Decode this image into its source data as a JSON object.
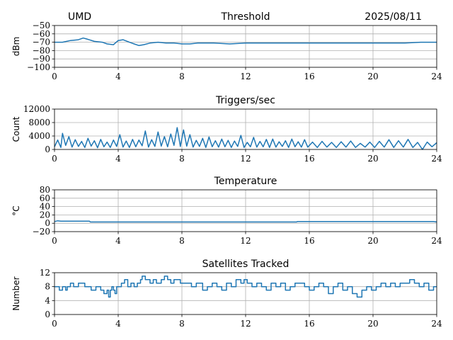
{
  "header": {
    "station": "UMD",
    "date": "2025/08/11"
  },
  "style": {
    "line_color": "#1f77b4",
    "grid_color": "#b0b0b0"
  },
  "chart_data": [
    {
      "type": "line",
      "title": "Threshold",
      "ylabel": "dBm",
      "xlim": [
        0,
        24
      ],
      "xticks": [
        0,
        4,
        8,
        12,
        16,
        20,
        24
      ],
      "ylim": [
        -100,
        -50
      ],
      "yticks": [
        -100,
        -90,
        -80,
        -70,
        -60,
        -50
      ],
      "ytick_labels": [
        "−100",
        "−90",
        "−80",
        "−70",
        "−60",
        "−50"
      ],
      "grid": true,
      "series": [
        {
          "x": [
            0,
            0.5,
            1,
            1.5,
            1.8,
            2,
            2.5,
            3,
            3.3,
            3.7,
            4,
            4.3,
            4.7,
            5,
            5.3,
            5.6,
            6,
            6.5,
            7,
            7.5,
            8,
            8.5,
            9,
            10,
            11,
            12,
            13,
            14,
            15,
            16,
            17,
            18,
            19,
            20,
            21,
            22,
            23,
            24
          ],
          "y": [
            -70,
            -70,
            -68,
            -67,
            -65,
            -66,
            -69,
            -70,
            -72,
            -73,
            -68,
            -67,
            -70,
            -72,
            -74,
            -73,
            -71,
            -70,
            -71,
            -71,
            -72,
            -72,
            -71,
            -71,
            -72,
            -71,
            -71,
            -71,
            -71,
            -71,
            -71,
            -71,
            -71,
            -71,
            -71,
            -71,
            -70,
            -70
          ]
        }
      ]
    },
    {
      "type": "line",
      "title": "Triggers/sec",
      "ylabel": "Count",
      "xlim": [
        0,
        24
      ],
      "xticks": [
        0,
        4,
        8,
        12,
        16,
        20,
        24
      ],
      "ylim": [
        0,
        12000
      ],
      "yticks": [
        0,
        4000,
        8000,
        12000
      ],
      "ytick_labels": [
        "0",
        "4000",
        "8000",
        "12000"
      ],
      "grid": true,
      "series": [
        {
          "x": [
            0,
            0.2,
            0.4,
            0.5,
            0.7,
            0.9,
            1.1,
            1.3,
            1.5,
            1.7,
            1.9,
            2.1,
            2.3,
            2.5,
            2.7,
            2.9,
            3.1,
            3.3,
            3.5,
            3.7,
            3.9,
            4.1,
            4.3,
            4.5,
            4.7,
            4.9,
            5.1,
            5.3,
            5.5,
            5.7,
            5.9,
            6.1,
            6.3,
            6.5,
            6.7,
            6.9,
            7.1,
            7.3,
            7.5,
            7.7,
            7.9,
            8.1,
            8.3,
            8.5,
            8.7,
            8.9,
            9.1,
            9.3,
            9.5,
            9.7,
            9.9,
            10.1,
            10.3,
            10.5,
            10.7,
            10.9,
            11.1,
            11.3,
            11.5,
            11.7,
            11.9,
            12.1,
            12.3,
            12.5,
            12.7,
            12.9,
            13.1,
            13.3,
            13.5,
            13.7,
            13.9,
            14.1,
            14.3,
            14.5,
            14.7,
            14.9,
            15.1,
            15.3,
            15.5,
            15.7,
            15.9,
            16.2,
            16.5,
            16.8,
            17.1,
            17.4,
            17.7,
            18,
            18.3,
            18.6,
            18.9,
            19.2,
            19.5,
            19.8,
            20.1,
            20.4,
            20.7,
            21,
            21.3,
            21.6,
            21.9,
            22.2,
            22.5,
            22.8,
            23.1,
            23.4,
            23.7,
            24
          ],
          "y": [
            800,
            2800,
            600,
            4800,
            1200,
            3800,
            700,
            2900,
            900,
            2400,
            600,
            3300,
            1000,
            2600,
            500,
            3000,
            800,
            2200,
            600,
            2800,
            900,
            4400,
            700,
            2500,
            600,
            3000,
            800,
            2800,
            1100,
            5500,
            700,
            2900,
            900,
            5200,
            1000,
            3800,
            800,
            4600,
            1200,
            6500,
            900,
            5800,
            1000,
            4400,
            700,
            2700,
            900,
            3300,
            600,
            3700,
            800,
            2600,
            700,
            3100,
            800,
            2700,
            600,
            2500,
            900,
            4200,
            600,
            2100,
            800,
            3600,
            700,
            2400,
            800,
            3000,
            600,
            3100,
            700,
            2300,
            900,
            2600,
            600,
            3100,
            800,
            2300,
            700,
            2900,
            700,
            2200,
            600,
            2400,
            700,
            2100,
            600,
            2300,
            700,
            2500,
            600,
            1800,
            700,
            2200,
            600,
            2400,
            700,
            2900,
            600,
            2600,
            700,
            3000,
            600,
            2100,
            0,
            2200,
            800,
            2000
          ]
        }
      ]
    },
    {
      "type": "line",
      "title": "Temperature",
      "ylabel": "°C",
      "xlim": [
        0,
        24
      ],
      "xticks": [
        0,
        4,
        8,
        12,
        16,
        20,
        24
      ],
      "ylim": [
        -20,
        80
      ],
      "yticks": [
        -20,
        0,
        20,
        40,
        60,
        80
      ],
      "ytick_labels": [
        "−20",
        "0",
        "20",
        "40",
        "60",
        "80"
      ],
      "grid": true,
      "series": [
        {
          "x": [
            0,
            0.2,
            0.4,
            2.2,
            2.25,
            15.2,
            15.25,
            23.8,
            24
          ],
          "y": [
            4,
            6,
            5,
            5,
            3,
            3,
            4,
            4,
            3
          ]
        }
      ]
    },
    {
      "type": "line",
      "title": "Satellites Tracked",
      "ylabel": "Number",
      "xlim": [
        0,
        24
      ],
      "xticks": [
        0,
        4,
        8,
        12,
        16,
        20,
        24
      ],
      "ylim": [
        0,
        12
      ],
      "yticks": [
        0,
        4,
        8,
        12
      ],
      "ytick_labels": [
        "0",
        "4",
        "8",
        "12"
      ],
      "grid": true,
      "step": true,
      "series": [
        {
          "x": [
            0,
            0.3,
            0.5,
            0.7,
            0.8,
            1.0,
            1.2,
            1.5,
            1.9,
            2.3,
            2.6,
            2.9,
            3.1,
            3.3,
            3.4,
            3.5,
            3.6,
            3.7,
            3.8,
            3.9,
            4.0,
            4.2,
            4.4,
            4.6,
            4.8,
            5.0,
            5.2,
            5.4,
            5.5,
            5.7,
            6.0,
            6.2,
            6.4,
            6.7,
            6.9,
            7.1,
            7.3,
            7.5,
            7.7,
            7.9,
            8.2,
            8.6,
            8.9,
            9.3,
            9.6,
            9.9,
            10.2,
            10.5,
            10.8,
            11.1,
            11.4,
            11.7,
            11.9,
            12.1,
            12.4,
            12.7,
            13.0,
            13.3,
            13.6,
            13.9,
            14.2,
            14.5,
            14.8,
            15.1,
            15.4,
            15.7,
            16.0,
            16.3,
            16.6,
            16.9,
            17.2,
            17.5,
            17.8,
            18.1,
            18.4,
            18.7,
            19.0,
            19.3,
            19.6,
            19.9,
            20.2,
            20.5,
            20.8,
            21.1,
            21.4,
            21.7,
            22.0,
            22.3,
            22.6,
            22.9,
            23.2,
            23.5,
            23.8
          ],
          "y": [
            8,
            7,
            8,
            7,
            8,
            9,
            8,
            9,
            8,
            7,
            8,
            7,
            6,
            7,
            5,
            7,
            8,
            7,
            6,
            8,
            8,
            9,
            10,
            8,
            9,
            8,
            9,
            10,
            11,
            10,
            9,
            10,
            9,
            10,
            11,
            10,
            9,
            10,
            10,
            9,
            9,
            8,
            9,
            7,
            8,
            9,
            8,
            7,
            9,
            8,
            10,
            9,
            10,
            9,
            8,
            9,
            8,
            7,
            9,
            8,
            9,
            7,
            8,
            9,
            9,
            8,
            7,
            8,
            9,
            8,
            6,
            8,
            9,
            7,
            8,
            6,
            5,
            7,
            8,
            7,
            8,
            9,
            8,
            9,
            8,
            9,
            9,
            10,
            9,
            8,
            9,
            7,
            8
          ]
        }
      ]
    }
  ]
}
